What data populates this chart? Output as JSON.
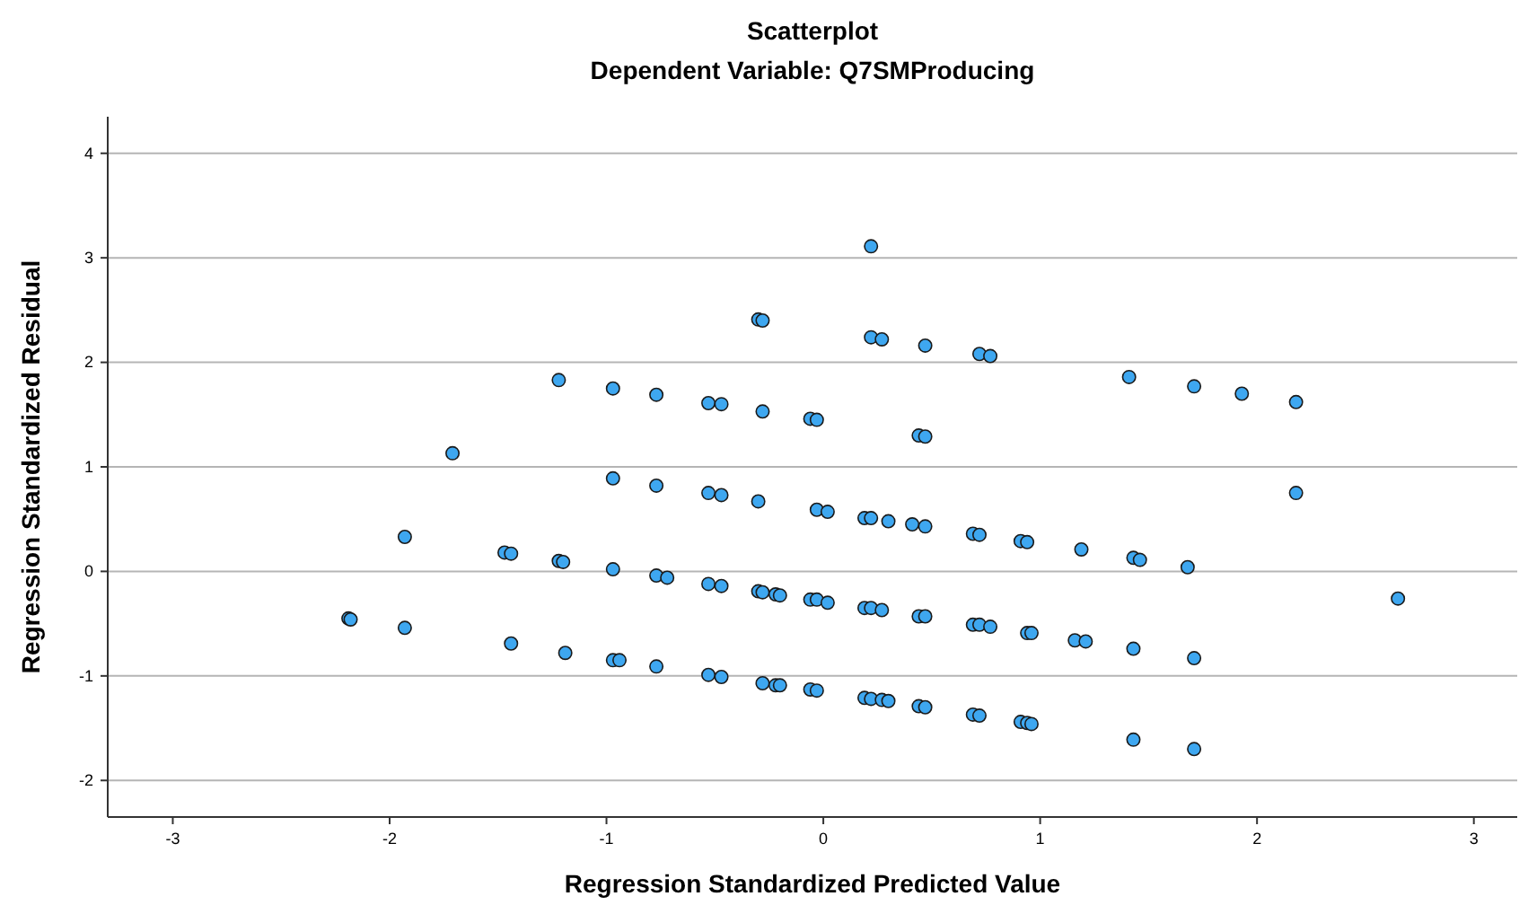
{
  "chart_data": {
    "type": "scatter",
    "title": "Scatterplot",
    "subtitle": "Dependent Variable: Q7SMProducing",
    "xlabel": "Regression Standardized Predicted Value",
    "ylabel": "Regression Standardized Residual",
    "xlim": [
      -3.3,
      3.2
    ],
    "ylim": [
      -2.35,
      4.35
    ],
    "xticks": [
      -3,
      -2,
      -1,
      0,
      1,
      2,
      3
    ],
    "yticks": [
      -2,
      -1,
      0,
      1,
      2,
      3,
      4
    ],
    "grid": "y",
    "marker": "circle",
    "series": [
      {
        "color": "#3ea7f0",
        "x": [
          -0.3,
          -0.28,
          -1.22,
          -0.97,
          -0.77,
          -0.53,
          -0.47,
          -0.28,
          -0.06,
          -0.03,
          -1.71,
          -0.97,
          -0.77,
          -0.53,
          -0.47,
          -0.3,
          -0.03,
          0.02,
          -1.93,
          -1.47,
          -1.44,
          -1.22,
          -1.2,
          -0.97,
          -0.77,
          -0.72,
          -0.53,
          -0.47,
          -0.3,
          -0.28,
          -0.22,
          -0.2,
          -0.06,
          -0.03,
          0.02,
          -2.19,
          -2.18,
          -1.93,
          -1.44,
          -1.19,
          -0.97,
          -0.94,
          -0.77,
          -0.53,
          -0.47,
          -0.28,
          -0.22,
          -0.2,
          -0.06,
          -0.03,
          0.22,
          0.22,
          0.27,
          0.47,
          0.72,
          0.77,
          1.41,
          1.71,
          1.93,
          2.18,
          0.44,
          0.47,
          2.18,
          0.19,
          0.22,
          0.3,
          0.41,
          0.47,
          0.69,
          0.72,
          0.91,
          0.94,
          1.19,
          1.43,
          1.46,
          1.68,
          2.65,
          0.19,
          0.22,
          0.27,
          0.44,
          0.47,
          0.69,
          0.72,
          0.77,
          0.94,
          0.96,
          1.16,
          1.21,
          1.43,
          1.71,
          0.19,
          0.22,
          0.27,
          0.3,
          0.44,
          0.47,
          0.69,
          0.72,
          0.91,
          0.94,
          0.96,
          1.43,
          1.71
        ],
        "values": [
          2.41,
          2.4,
          1.83,
          1.75,
          1.69,
          1.61,
          1.6,
          1.53,
          1.46,
          1.45,
          1.13,
          0.89,
          0.82,
          0.75,
          0.73,
          0.67,
          0.59,
          0.57,
          0.33,
          0.18,
          0.17,
          0.1,
          0.09,
          0.02,
          -0.04,
          -0.06,
          -0.12,
          -0.14,
          -0.19,
          -0.2,
          -0.22,
          -0.23,
          -0.27,
          -0.27,
          -0.3,
          -0.45,
          -0.46,
          -0.54,
          -0.69,
          -0.78,
          -0.85,
          -0.85,
          -0.91,
          -0.99,
          -1.01,
          -1.07,
          -1.09,
          -1.09,
          -1.13,
          -1.14,
          3.11,
          2.24,
          2.22,
          2.16,
          2.08,
          2.06,
          1.86,
          1.77,
          1.7,
          1.62,
          1.3,
          1.29,
          0.75,
          0.51,
          0.51,
          0.48,
          0.45,
          0.43,
          0.36,
          0.35,
          0.29,
          0.28,
          0.21,
          0.13,
          0.11,
          0.04,
          -0.26,
          -0.35,
          -0.35,
          -0.37,
          -0.43,
          -0.43,
          -0.51,
          -0.51,
          -0.53,
          -0.59,
          -0.59,
          -0.66,
          -0.67,
          -0.74,
          -0.83,
          -1.21,
          -1.22,
          -1.23,
          -1.24,
          -1.29,
          -1.3,
          -1.37,
          -1.38,
          -1.44,
          -1.45,
          -1.46,
          -1.61,
          -1.7
        ]
      }
    ]
  }
}
